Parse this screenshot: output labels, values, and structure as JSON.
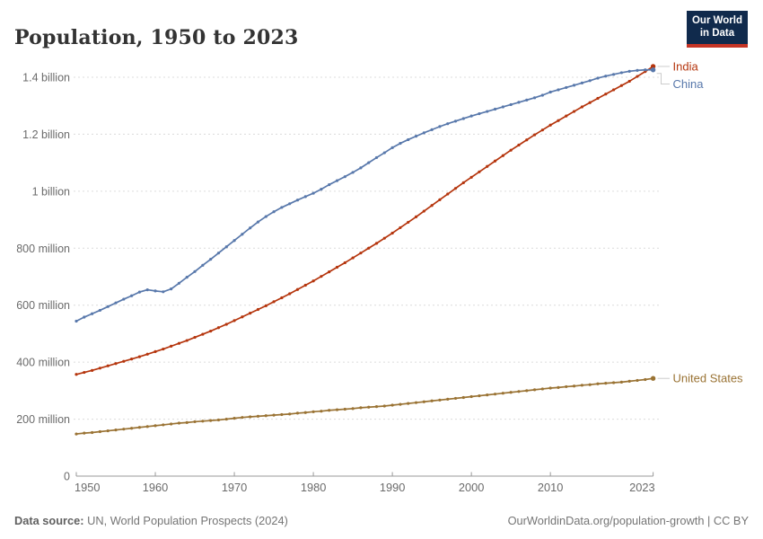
{
  "header": {
    "title": "Population, 1950 to 2023"
  },
  "logo": {
    "line1": "Our World",
    "line2": "in Data",
    "bg_color": "#102a4c",
    "accent_color": "#c53425"
  },
  "chart_data": {
    "type": "line",
    "title": "Population, 1950 to 2023",
    "xlabel": "",
    "ylabel": "",
    "grid": true,
    "legend_position": "right-end-labels",
    "xlim": [
      1950,
      2023
    ],
    "ylim": [
      0,
      1450
    ],
    "x": [
      1950,
      1951,
      1952,
      1953,
      1954,
      1955,
      1956,
      1957,
      1958,
      1959,
      1960,
      1961,
      1962,
      1963,
      1964,
      1965,
      1966,
      1967,
      1968,
      1969,
      1970,
      1971,
      1972,
      1973,
      1974,
      1975,
      1976,
      1977,
      1978,
      1979,
      1980,
      1981,
      1982,
      1983,
      1984,
      1985,
      1986,
      1987,
      1988,
      1989,
      1990,
      1991,
      1992,
      1993,
      1994,
      1995,
      1996,
      1997,
      1998,
      1999,
      2000,
      2001,
      2002,
      2003,
      2004,
      2005,
      2006,
      2007,
      2008,
      2009,
      2010,
      2011,
      2012,
      2013,
      2014,
      2015,
      2016,
      2017,
      2018,
      2019,
      2020,
      2021,
      2022,
      2023
    ],
    "unit": "million people",
    "series": [
      {
        "name": "India",
        "color": "#b5350d",
        "values": [
          357,
          364,
          371,
          379,
          387,
          395,
          403,
          411,
          419,
          428,
          437,
          446,
          456,
          466,
          476,
          487,
          498,
          509,
          521,
          533,
          546,
          559,
          572,
          585,
          598,
          612,
          626,
          640,
          655,
          670,
          685,
          701,
          717,
          733,
          749,
          766,
          783,
          800,
          817,
          835,
          853,
          872,
          891,
          910,
          930,
          950,
          970,
          990,
          1010,
          1030,
          1049,
          1068,
          1087,
          1106,
          1125,
          1144,
          1162,
          1180,
          1198,
          1215,
          1232,
          1248,
          1264,
          1280,
          1296,
          1311,
          1326,
          1341,
          1356,
          1371,
          1386,
          1403,
          1420,
          1438
        ]
      },
      {
        "name": "China",
        "color": "#5878ab",
        "values": [
          544,
          558,
          570,
          582,
          595,
          608,
          621,
          633,
          646,
          654,
          650,
          647,
          657,
          677,
          698,
          718,
          740,
          761,
          783,
          805,
          827,
          849,
          871,
          892,
          911,
          928,
          943,
          956,
          969,
          981,
          993,
          1007,
          1023,
          1037,
          1051,
          1066,
          1082,
          1100,
          1118,
          1135,
          1153,
          1168,
          1181,
          1193,
          1205,
          1216,
          1227,
          1237,
          1246,
          1255,
          1264,
          1272,
          1280,
          1288,
          1296,
          1304,
          1312,
          1320,
          1328,
          1337,
          1348,
          1356,
          1364,
          1372,
          1380,
          1388,
          1397,
          1404,
          1410,
          1416,
          1421,
          1424,
          1426,
          1426
        ]
      },
      {
        "name": "United States",
        "color": "#9a7334",
        "values": [
          148,
          151,
          153,
          156,
          159,
          162,
          165,
          168,
          171,
          174,
          177,
          180,
          183,
          186,
          188,
          191,
          193,
          195,
          197,
          200,
          203,
          206,
          208,
          210,
          212,
          214,
          216,
          218,
          221,
          223,
          226,
          228,
          231,
          233,
          235,
          237,
          240,
          242,
          244,
          246,
          249,
          252,
          255,
          258,
          261,
          264,
          267,
          270,
          273,
          276,
          279,
          282,
          285,
          288,
          291,
          294,
          297,
          300,
          303,
          306,
          309,
          311,
          314,
          316,
          319,
          321,
          324,
          326,
          328,
          330,
          333,
          336,
          339,
          343
        ]
      }
    ],
    "yticks": [
      {
        "value": 0,
        "label": "0"
      },
      {
        "value": 200,
        "label": "200 million"
      },
      {
        "value": 400,
        "label": "400 million"
      },
      {
        "value": 600,
        "label": "600 million"
      },
      {
        "value": 800,
        "label": "800 million"
      },
      {
        "value": 1000,
        "label": "1 billion"
      },
      {
        "value": 1200,
        "label": "1.2 billion"
      },
      {
        "value": 1400,
        "label": "1.4 billion"
      }
    ],
    "xticks": [
      1950,
      1960,
      1970,
      1980,
      1990,
      2000,
      2010,
      2023
    ],
    "colors": {
      "grid": "#dcdcdc",
      "axis": "#999999",
      "tick_text": "#6b6b6b",
      "connector": "#cccccc"
    }
  },
  "footer": {
    "source_label": "Data source:",
    "source_text": "UN, World Population Prospects (2024)",
    "link_text": "OurWorldinData.org/population-growth | CC BY"
  }
}
